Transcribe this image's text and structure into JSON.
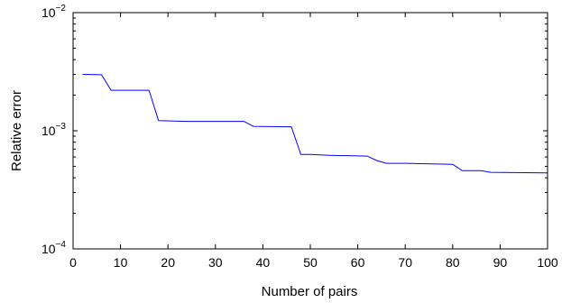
{
  "chart_data": {
    "type": "line",
    "title": "",
    "xlabel": "Number of pairs",
    "ylabel": "Relative error",
    "xlim": [
      0,
      100
    ],
    "ylim": [
      0.0001,
      0.01
    ],
    "yscale": "log",
    "grid": false,
    "legend": "none",
    "x_ticks": [
      0,
      10,
      20,
      30,
      40,
      50,
      60,
      70,
      80,
      90,
      100
    ],
    "x_tick_labels": [
      "0",
      "10",
      "20",
      "30",
      "40",
      "50",
      "60",
      "70",
      "80",
      "90",
      "100"
    ],
    "y_ticks": [
      0.0001,
      0.001,
      0.01
    ],
    "y_tick_labels": [
      {
        "base": "10",
        "exp": "−4"
      },
      {
        "base": "10",
        "exp": "−3"
      },
      {
        "base": "10",
        "exp": "−2"
      }
    ],
    "series": [
      {
        "color": "#0000ff",
        "x": [
          2,
          6,
          8,
          16,
          18,
          24,
          36,
          38,
          46,
          48,
          50,
          54,
          62,
          64,
          66,
          70,
          80,
          82,
          86,
          88,
          100
        ],
        "y": [
          0.003,
          0.00298,
          0.0022,
          0.0022,
          0.00122,
          0.0012,
          0.0012,
          0.00109,
          0.00108,
          0.00063,
          0.00063,
          0.00062,
          0.00061,
          0.00056,
          0.00053,
          0.00053,
          0.00052,
          0.00046,
          0.00046,
          0.000445,
          0.00044
        ]
      }
    ]
  }
}
